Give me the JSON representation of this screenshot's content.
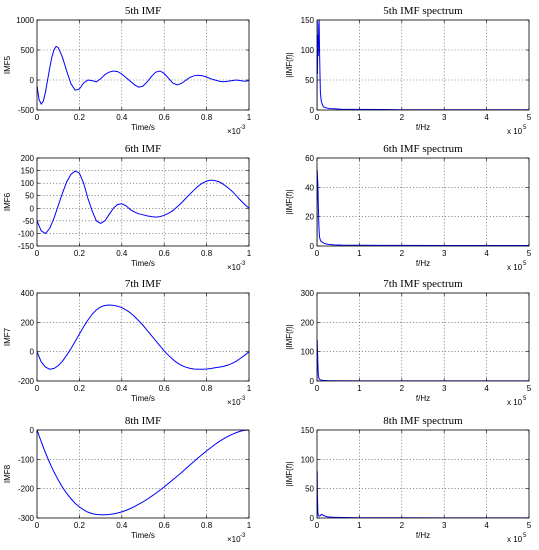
{
  "chart_data": [
    {
      "type": "line",
      "title": "5th IMF",
      "xlabel": "Time/s",
      "ylabel": "IMF5",
      "x_multiplier": "×10",
      "x_exponent": "-3",
      "xlim": [
        0,
        1
      ],
      "ylim": [
        -500,
        1000
      ],
      "xticks": [
        "0",
        "0.2",
        "0.4",
        "0.6",
        "0.8",
        "1"
      ],
      "yticks": [
        "-500",
        "0",
        "500",
        "1000"
      ],
      "grid": true,
      "color": "#0000ff",
      "series": [
        {
          "x": [
            0,
            0.01,
            0.02,
            0.03,
            0.04,
            0.05,
            0.06,
            0.07,
            0.08,
            0.09,
            0.1,
            0.12,
            0.14,
            0.16,
            0.18,
            0.2,
            0.22,
            0.24,
            0.26,
            0.28,
            0.3,
            0.32,
            0.34,
            0.36,
            0.38,
            0.4,
            0.42,
            0.44,
            0.46,
            0.48,
            0.5,
            0.52,
            0.54,
            0.56,
            0.58,
            0.6,
            0.62,
            0.64,
            0.66,
            0.68,
            0.7,
            0.72,
            0.74,
            0.76,
            0.78,
            0.8,
            0.82,
            0.84,
            0.86,
            0.88,
            0.9,
            0.92,
            0.94,
            0.96,
            0.98,
            1
          ],
          "y": [
            -100,
            -330,
            -400,
            -350,
            -200,
            0,
            200,
            380,
            500,
            560,
            540,
            380,
            150,
            -60,
            -170,
            -150,
            -50,
            0,
            -10,
            -30,
            20,
            90,
            130,
            150,
            140,
            100,
            40,
            -20,
            -80,
            -120,
            -100,
            -30,
            60,
            130,
            150,
            110,
            30,
            -50,
            -80,
            -60,
            -10,
            40,
            70,
            80,
            70,
            50,
            20,
            0,
            -20,
            -30,
            -20,
            -10,
            0,
            -10,
            -20,
            -10
          ]
        }
      ]
    },
    {
      "type": "line",
      "title": "5th IMF spectrum",
      "xlabel": "f/Hz",
      "ylabel": "|IMF(f)|",
      "x_multiplier": "x 10",
      "x_exponent": "5",
      "xlim": [
        0,
        5
      ],
      "ylim": [
        0,
        150
      ],
      "xticks": [
        "0",
        "1",
        "2",
        "3",
        "4",
        "5"
      ],
      "yticks": [
        "0",
        "50",
        "100",
        "150"
      ],
      "grid": true,
      "color": "#0000ff",
      "series": [
        {
          "x": [
            0,
            0.005,
            0.01,
            0.02,
            0.03,
            0.04,
            0.05,
            0.06,
            0.07,
            0.08,
            0.1,
            0.13,
            0.16,
            0.2,
            0.25,
            0.3,
            0.4,
            0.6,
            1,
            2,
            3,
            4,
            5
          ],
          "y": [
            0,
            148,
            60,
            125,
            90,
            140,
            150,
            100,
            60,
            30,
            15,
            8,
            5,
            4,
            3,
            2,
            2,
            1,
            1,
            0.5,
            0.5,
            0.5,
            0.5
          ]
        }
      ]
    },
    {
      "type": "line",
      "title": "6th IMF",
      "xlabel": "Time/s",
      "ylabel": "IMF6",
      "x_multiplier": "×10",
      "x_exponent": "-3",
      "xlim": [
        0,
        1
      ],
      "ylim": [
        -150,
        200
      ],
      "xticks": [
        "0",
        "0.2",
        "0.4",
        "0.6",
        "0.8",
        "1"
      ],
      "yticks": [
        "-150",
        "-100",
        "-50",
        "0",
        "50",
        "100",
        "150",
        "200"
      ],
      "grid": true,
      "color": "#0000ff",
      "series": [
        {
          "x": [
            0,
            0.02,
            0.04,
            0.06,
            0.08,
            0.1,
            0.12,
            0.14,
            0.16,
            0.18,
            0.2,
            0.22,
            0.24,
            0.26,
            0.28,
            0.3,
            0.32,
            0.34,
            0.36,
            0.38,
            0.4,
            0.42,
            0.44,
            0.46,
            0.48,
            0.5,
            0.52,
            0.54,
            0.56,
            0.58,
            0.6,
            0.62,
            0.64,
            0.66,
            0.68,
            0.7,
            0.72,
            0.74,
            0.76,
            0.78,
            0.8,
            0.82,
            0.84,
            0.86,
            0.88,
            0.9,
            0.92,
            0.94,
            0.96,
            0.98,
            1
          ],
          "y": [
            -50,
            -90,
            -100,
            -80,
            -40,
            10,
            60,
            105,
            135,
            148,
            140,
            100,
            40,
            -10,
            -50,
            -60,
            -50,
            -25,
            0,
            15,
            18,
            10,
            -5,
            -15,
            -22,
            -26,
            -30,
            -33,
            -35,
            -33,
            -28,
            -20,
            -10,
            5,
            20,
            38,
            55,
            72,
            88,
            100,
            108,
            112,
            110,
            105,
            95,
            82,
            68,
            50,
            32,
            15,
            0
          ]
        }
      ]
    },
    {
      "type": "line",
      "title": "6th IMF spectrum",
      "xlabel": "f/Hz",
      "ylabel": "|IMF(f)|",
      "x_multiplier": "x 10",
      "x_exponent": "5",
      "xlim": [
        0,
        5
      ],
      "ylim": [
        0,
        60
      ],
      "xticks": [
        "0",
        "1",
        "2",
        "3",
        "4",
        "5"
      ],
      "yticks": [
        "0",
        "20",
        "40",
        "60"
      ],
      "grid": true,
      "color": "#0000ff",
      "series": [
        {
          "x": [
            0,
            0.005,
            0.01,
            0.02,
            0.03,
            0.04,
            0.05,
            0.06,
            0.08,
            0.1,
            0.13,
            0.16,
            0.2,
            0.25,
            0.3,
            0.4,
            0.6,
            1,
            2,
            3,
            4,
            5
          ],
          "y": [
            0,
            52,
            48,
            42,
            30,
            18,
            10,
            6,
            4,
            3,
            2.5,
            2,
            1.5,
            1.2,
            1,
            0.8,
            0.6,
            0.5,
            0.4,
            0.3,
            0.3,
            0.3
          ]
        }
      ]
    },
    {
      "type": "line",
      "title": "7th IMF",
      "xlabel": "Time/s",
      "ylabel": "IMF7",
      "x_multiplier": "×10",
      "x_exponent": "-3",
      "xlim": [
        0,
        1
      ],
      "ylim": [
        -200,
        400
      ],
      "xticks": [
        "0",
        "0.2",
        "0.4",
        "0.6",
        "0.8",
        "1"
      ],
      "yticks": [
        "-200",
        "0",
        "200",
        "400"
      ],
      "grid": true,
      "color": "#0000ff",
      "series": [
        {
          "x": [
            0,
            0.02,
            0.04,
            0.06,
            0.08,
            0.1,
            0.12,
            0.14,
            0.16,
            0.18,
            0.2,
            0.22,
            0.24,
            0.26,
            0.28,
            0.3,
            0.32,
            0.34,
            0.36,
            0.38,
            0.4,
            0.42,
            0.44,
            0.46,
            0.48,
            0.5,
            0.52,
            0.54,
            0.56,
            0.58,
            0.6,
            0.62,
            0.64,
            0.66,
            0.68,
            0.7,
            0.72,
            0.74,
            0.76,
            0.78,
            0.8,
            0.82,
            0.84,
            0.86,
            0.88,
            0.9,
            0.92,
            0.94,
            0.96,
            0.98,
            1
          ],
          "y": [
            0,
            -70,
            -105,
            -120,
            -115,
            -95,
            -65,
            -25,
            20,
            70,
            120,
            170,
            215,
            255,
            285,
            305,
            315,
            318,
            316,
            310,
            300,
            285,
            265,
            240,
            210,
            180,
            145,
            110,
            75,
            40,
            5,
            -25,
            -52,
            -75,
            -92,
            -105,
            -113,
            -118,
            -120,
            -120,
            -118,
            -115,
            -110,
            -105,
            -100,
            -92,
            -80,
            -65,
            -45,
            -25,
            0
          ]
        }
      ]
    },
    {
      "type": "line",
      "title": "7th IMF spectrum",
      "xlabel": "f/Hz",
      "ylabel": "|IMF(f)|",
      "x_multiplier": "x 10",
      "x_exponent": "5",
      "xlim": [
        0,
        5
      ],
      "ylim": [
        0,
        300
      ],
      "xticks": [
        "0",
        "1",
        "2",
        "3",
        "4",
        "5"
      ],
      "yticks": [
        "0",
        "100",
        "200",
        "300"
      ],
      "grid": true,
      "color": "#0000ff",
      "series": [
        {
          "x": [
            0,
            0.005,
            0.01,
            0.02,
            0.03,
            0.04,
            0.06,
            0.08,
            0.1,
            0.15,
            0.2,
            0.3,
            0.5,
            1,
            2,
            3,
            4,
            5
          ],
          "y": [
            0,
            140,
            110,
            60,
            25,
            12,
            6,
            4,
            3,
            2,
            1.5,
            1,
            0.8,
            0.5,
            0.4,
            0.3,
            0.3,
            0.3
          ]
        }
      ]
    },
    {
      "type": "line",
      "title": "8th IMF",
      "xlabel": "Time/s",
      "ylabel": "IMF8",
      "x_multiplier": "×10",
      "x_exponent": "-3",
      "xlim": [
        0,
        1
      ],
      "ylim": [
        -300,
        0
      ],
      "xticks": [
        "0",
        "0.2",
        "0.4",
        "0.6",
        "0.8",
        "1"
      ],
      "yticks": [
        "-300",
        "-200",
        "-100",
        "0"
      ],
      "grid": true,
      "color": "#0000ff",
      "series": [
        {
          "x": [
            0,
            0.02,
            0.04,
            0.06,
            0.08,
            0.1,
            0.12,
            0.14,
            0.16,
            0.18,
            0.2,
            0.22,
            0.24,
            0.26,
            0.28,
            0.3,
            0.32,
            0.34,
            0.36,
            0.38,
            0.4,
            0.42,
            0.44,
            0.46,
            0.48,
            0.5,
            0.52,
            0.54,
            0.56,
            0.58,
            0.6,
            0.62,
            0.64,
            0.66,
            0.68,
            0.7,
            0.72,
            0.74,
            0.76,
            0.78,
            0.8,
            0.82,
            0.84,
            0.86,
            0.88,
            0.9,
            0.92,
            0.94,
            0.96,
            0.98,
            1
          ],
          "y": [
            0,
            -40,
            -78,
            -112,
            -143,
            -170,
            -195,
            -216,
            -234,
            -250,
            -262,
            -272,
            -280,
            -285,
            -288,
            -289,
            -289,
            -288,
            -286,
            -283,
            -279,
            -274,
            -268,
            -261,
            -253,
            -245,
            -236,
            -226,
            -216,
            -205,
            -194,
            -182,
            -170,
            -158,
            -146,
            -133,
            -120,
            -108,
            -95,
            -83,
            -71,
            -60,
            -49,
            -39,
            -30,
            -22,
            -15,
            -9,
            -4,
            -1,
            0
          ]
        }
      ]
    },
    {
      "type": "line",
      "title": "8th IMF spectrum",
      "xlabel": "f/Hz",
      "ylabel": "|IMF(f)|",
      "x_multiplier": "x 10",
      "x_exponent": "5",
      "xlim": [
        0,
        5
      ],
      "ylim": [
        0,
        150
      ],
      "xticks": [
        "0",
        "1",
        "2",
        "3",
        "4",
        "5"
      ],
      "yticks": [
        "0",
        "50",
        "100",
        "150"
      ],
      "grid": true,
      "color": "#0000ff",
      "series": [
        {
          "x": [
            0,
            0.005,
            0.01,
            0.02,
            0.03,
            0.05,
            0.08,
            0.1,
            0.12,
            0.14,
            0.16,
            0.2,
            0.25,
            0.3,
            0.35,
            0.4,
            0.5,
            0.6,
            0.8,
            1,
            2,
            3,
            4,
            5
          ],
          "y": [
            0,
            80,
            40,
            10,
            5,
            3,
            4,
            6,
            6,
            5,
            4,
            3,
            2,
            1.5,
            1.5,
            1,
            1,
            0.8,
            0.6,
            0.5,
            0.4,
            0.3,
            0.3,
            0.3
          ]
        }
      ]
    }
  ]
}
